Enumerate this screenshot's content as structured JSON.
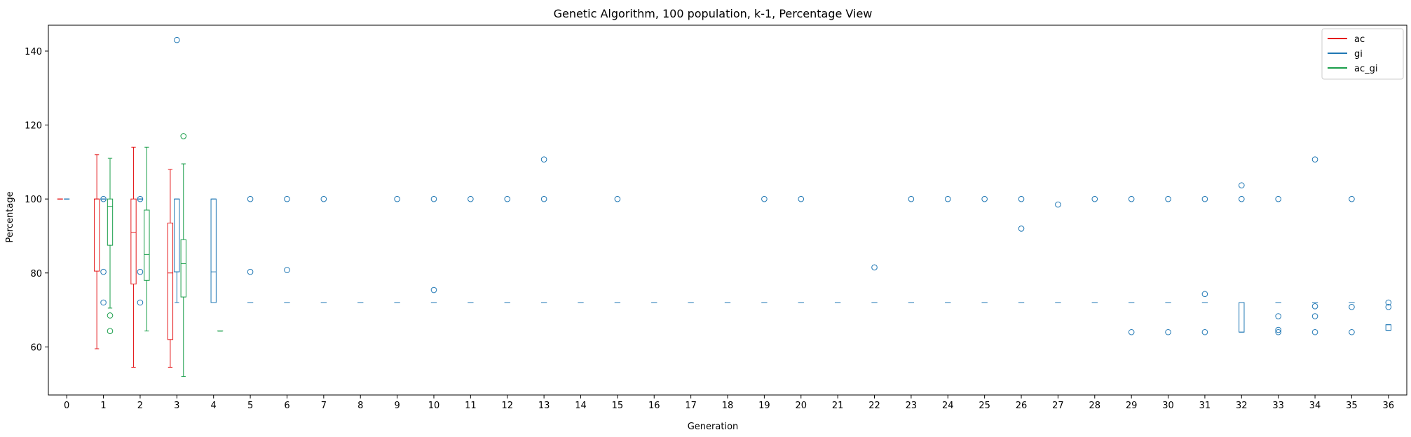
{
  "chart_data": {
    "type": "box",
    "title": "Genetic Algorithm, 100 population, k-1, Percentage View",
    "xlabel": "Generation",
    "ylabel": "Percentage",
    "categories": [
      "0",
      "1",
      "2",
      "3",
      "4",
      "5",
      "6",
      "7",
      "8",
      "9",
      "10",
      "11",
      "12",
      "13",
      "14",
      "15",
      "16",
      "17",
      "18",
      "19",
      "20",
      "21",
      "22",
      "23",
      "24",
      "25",
      "26",
      "27",
      "28",
      "29",
      "30",
      "31",
      "32",
      "33",
      "34",
      "35",
      "36"
    ],
    "ylim": [
      47,
      147
    ],
    "yticks": [
      60,
      80,
      100,
      120,
      140
    ],
    "legend_position": "top-right",
    "grid": false,
    "series": [
      {
        "name": "ac",
        "color": "#e41a1c",
        "boxes": [
          {
            "gen": 0,
            "whislo": 100,
            "q1": 100,
            "med": 100,
            "q3": 100,
            "whishi": 100,
            "fliers": []
          },
          {
            "gen": 1,
            "whislo": 59.5,
            "q1": 80.5,
            "med": 100,
            "q3": 100,
            "whishi": 112,
            "fliers": []
          },
          {
            "gen": 2,
            "whislo": 54.5,
            "q1": 77,
            "med": 91,
            "q3": 100,
            "whishi": 114,
            "fliers": []
          },
          {
            "gen": 3,
            "whislo": 54.5,
            "q1": 62,
            "med": 80,
            "q3": 93.5,
            "whishi": 108,
            "fliers": []
          }
        ]
      },
      {
        "name": "gi",
        "color": "#1f77b4",
        "boxes": [
          {
            "gen": 0,
            "whislo": 100,
            "q1": 100,
            "med": 100,
            "q3": 100,
            "whishi": 100,
            "fliers": []
          },
          {
            "gen": 1,
            "whislo": 100,
            "q1": 100,
            "med": 100,
            "q3": 100,
            "whishi": 100,
            "fliers": [
              72,
              80.3,
              100
            ]
          },
          {
            "gen": 2,
            "whislo": 100,
            "q1": 100,
            "med": 100,
            "q3": 100,
            "whishi": 100,
            "fliers": [
              72,
              80.3,
              100
            ]
          },
          {
            "gen": 3,
            "whislo": 72,
            "q1": 80.3,
            "med": 80.3,
            "q3": 100,
            "whishi": 100,
            "fliers": [
              143
            ]
          },
          {
            "gen": 4,
            "whislo": 72,
            "q1": 72,
            "med": 80.3,
            "q3": 100,
            "whishi": 100,
            "fliers": []
          },
          {
            "gen": 5,
            "whislo": 72,
            "q1": 72,
            "med": 72,
            "q3": 72,
            "whishi": 72,
            "fliers": [
              80.3,
              100
            ]
          },
          {
            "gen": 6,
            "whislo": 72,
            "q1": 72,
            "med": 72,
            "q3": 72,
            "whishi": 72,
            "fliers": [
              80.8,
              100
            ]
          },
          {
            "gen": 7,
            "whislo": 72,
            "q1": 72,
            "med": 72,
            "q3": 72,
            "whishi": 72,
            "fliers": [
              100
            ]
          },
          {
            "gen": 8,
            "whislo": 72,
            "q1": 72,
            "med": 72,
            "q3": 72,
            "whishi": 72,
            "fliers": []
          },
          {
            "gen": 9,
            "whislo": 72,
            "q1": 72,
            "med": 72,
            "q3": 72,
            "whishi": 72,
            "fliers": [
              100
            ]
          },
          {
            "gen": 10,
            "whislo": 72,
            "q1": 72,
            "med": 72,
            "q3": 72,
            "whishi": 72,
            "fliers": [
              75.4,
              100
            ]
          },
          {
            "gen": 11,
            "whislo": 72,
            "q1": 72,
            "med": 72,
            "q3": 72,
            "whishi": 72,
            "fliers": [
              100
            ]
          },
          {
            "gen": 12,
            "whislo": 72,
            "q1": 72,
            "med": 72,
            "q3": 72,
            "whishi": 72,
            "fliers": [
              100
            ]
          },
          {
            "gen": 13,
            "whislo": 72,
            "q1": 72,
            "med": 72,
            "q3": 72,
            "whishi": 72,
            "fliers": [
              100,
              110.7
            ]
          },
          {
            "gen": 14,
            "whislo": 72,
            "q1": 72,
            "med": 72,
            "q3": 72,
            "whishi": 72,
            "fliers": []
          },
          {
            "gen": 15,
            "whislo": 72,
            "q1": 72,
            "med": 72,
            "q3": 72,
            "whishi": 72,
            "fliers": [
              100
            ]
          },
          {
            "gen": 16,
            "whislo": 72,
            "q1": 72,
            "med": 72,
            "q3": 72,
            "whishi": 72,
            "fliers": []
          },
          {
            "gen": 17,
            "whislo": 72,
            "q1": 72,
            "med": 72,
            "q3": 72,
            "whishi": 72,
            "fliers": []
          },
          {
            "gen": 18,
            "whislo": 72,
            "q1": 72,
            "med": 72,
            "q3": 72,
            "whishi": 72,
            "fliers": []
          },
          {
            "gen": 19,
            "whislo": 72,
            "q1": 72,
            "med": 72,
            "q3": 72,
            "whishi": 72,
            "fliers": [
              100
            ]
          },
          {
            "gen": 20,
            "whislo": 72,
            "q1": 72,
            "med": 72,
            "q3": 72,
            "whishi": 72,
            "fliers": [
              100
            ]
          },
          {
            "gen": 21,
            "whislo": 72,
            "q1": 72,
            "med": 72,
            "q3": 72,
            "whishi": 72,
            "fliers": []
          },
          {
            "gen": 22,
            "whislo": 72,
            "q1": 72,
            "med": 72,
            "q3": 72,
            "whishi": 72,
            "fliers": [
              81.5
            ]
          },
          {
            "gen": 23,
            "whislo": 72,
            "q1": 72,
            "med": 72,
            "q3": 72,
            "whishi": 72,
            "fliers": [
              100
            ]
          },
          {
            "gen": 24,
            "whislo": 72,
            "q1": 72,
            "med": 72,
            "q3": 72,
            "whishi": 72,
            "fliers": [
              100
            ]
          },
          {
            "gen": 25,
            "whislo": 72,
            "q1": 72,
            "med": 72,
            "q3": 72,
            "whishi": 72,
            "fliers": [
              100
            ]
          },
          {
            "gen": 26,
            "whislo": 72,
            "q1": 72,
            "med": 72,
            "q3": 72,
            "whishi": 72,
            "fliers": [
              92,
              100
            ]
          },
          {
            "gen": 27,
            "whislo": 72,
            "q1": 72,
            "med": 72,
            "q3": 72,
            "whishi": 72,
            "fliers": [
              98.5
            ]
          },
          {
            "gen": 28,
            "whislo": 72,
            "q1": 72,
            "med": 72,
            "q3": 72,
            "whishi": 72,
            "fliers": [
              100
            ]
          },
          {
            "gen": 29,
            "whislo": 72,
            "q1": 72,
            "med": 72,
            "q3": 72,
            "whishi": 72,
            "fliers": [
              64,
              100
            ]
          },
          {
            "gen": 30,
            "whislo": 72,
            "q1": 72,
            "med": 72,
            "q3": 72,
            "whishi": 72,
            "fliers": [
              64,
              100
            ]
          },
          {
            "gen": 31,
            "whislo": 72,
            "q1": 72,
            "med": 72,
            "q3": 72,
            "whishi": 72,
            "fliers": [
              64,
              74.3,
              100
            ]
          },
          {
            "gen": 32,
            "whislo": 64,
            "q1": 64,
            "med": 72,
            "q3": 72,
            "whishi": 72,
            "fliers": [
              100,
              103.7
            ]
          },
          {
            "gen": 33,
            "whislo": 72,
            "q1": 72,
            "med": 72,
            "q3": 72,
            "whishi": 72,
            "fliers": [
              64,
              64.6,
              68.3,
              100
            ]
          },
          {
            "gen": 34,
            "whislo": 72,
            "q1": 72,
            "med": 72,
            "q3": 72,
            "whishi": 72,
            "fliers": [
              64,
              68.3,
              71,
              110.7
            ]
          },
          {
            "gen": 35,
            "whislo": 72,
            "q1": 72,
            "med": 72,
            "q3": 72,
            "whishi": 72,
            "fliers": [
              64,
              70.8,
              100
            ]
          },
          {
            "gen": 36,
            "whislo": 64.5,
            "q1": 64.5,
            "med": 64.5,
            "q3": 66,
            "whishi": 66,
            "fliers": [
              70.8,
              72
            ]
          }
        ]
      },
      {
        "name": "ac_gi",
        "color": "#1a9e4a",
        "boxes": [
          {
            "gen": 1,
            "whislo": 70.5,
            "q1": 87.5,
            "med": 98,
            "q3": 100,
            "whishi": 111,
            "fliers": [
              64.3,
              68.5
            ]
          },
          {
            "gen": 2,
            "whislo": 64.3,
            "q1": 78,
            "med": 85,
            "q3": 97,
            "whishi": 114,
            "fliers": []
          },
          {
            "gen": 3,
            "whislo": 52,
            "q1": 73.5,
            "med": 82.5,
            "q3": 89,
            "whishi": 109.5,
            "fliers": [
              117
            ]
          },
          {
            "gen": 4,
            "whislo": 64.3,
            "q1": 64.3,
            "med": 64.3,
            "q3": 64.3,
            "whishi": 64.3,
            "fliers": []
          }
        ]
      }
    ]
  }
}
